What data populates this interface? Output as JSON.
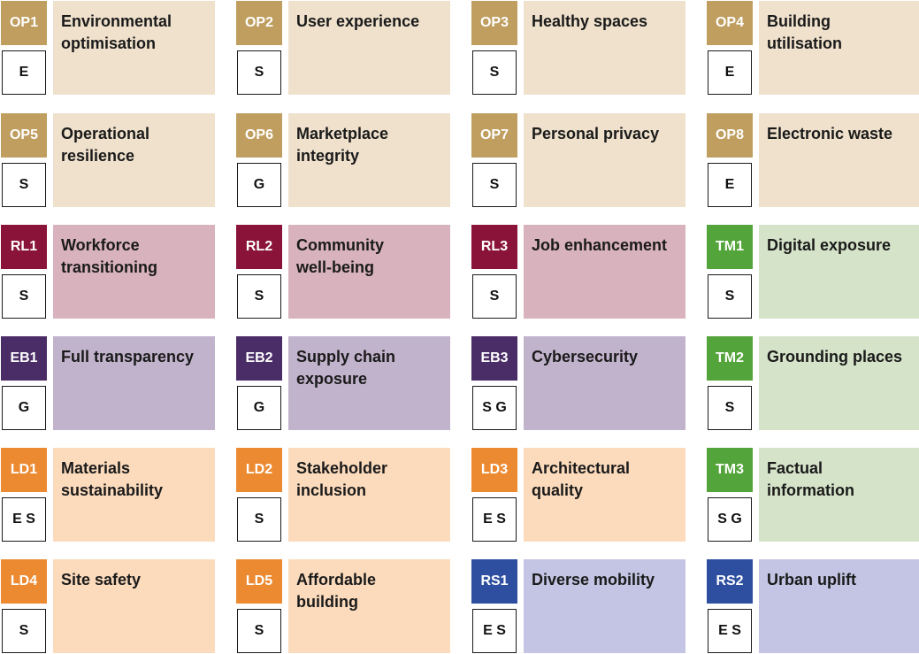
{
  "colors": {
    "op": {
      "code": "#bf9e5f",
      "panel": "#efe1cc"
    },
    "rl": {
      "code": "#8a1339",
      "panel": "#d8b2bd"
    },
    "eb": {
      "code": "#4a2c66",
      "panel": "#c1b3cc"
    },
    "ld": {
      "code": "#ec8a31",
      "panel": "#fcdbbd"
    },
    "tm": {
      "code": "#53a43a",
      "panel": "#d5e3c9"
    },
    "rs": {
      "code": "#2e4f9f",
      "panel": "#c4c5e4"
    }
  },
  "tiles": [
    {
      "code": "OP1",
      "title": "Environmental\noptimisation",
      "esg": "E",
      "group": "op"
    },
    {
      "code": "OP2",
      "title": "User experience",
      "esg": "S",
      "group": "op"
    },
    {
      "code": "OP3",
      "title": "Healthy spaces",
      "esg": "S",
      "group": "op"
    },
    {
      "code": "OP4",
      "title": "Building\nutilisation",
      "esg": "E",
      "group": "op"
    },
    {
      "code": "OP5",
      "title": "Operational\nresilience",
      "esg": "S",
      "group": "op"
    },
    {
      "code": "OP6",
      "title": "Marketplace\nintegrity",
      "esg": "G",
      "group": "op"
    },
    {
      "code": "OP7",
      "title": "Personal privacy",
      "esg": "S",
      "group": "op"
    },
    {
      "code": "OP8",
      "title": "Electronic waste",
      "esg": "E",
      "group": "op"
    },
    {
      "code": "RL1",
      "title": "Workforce\ntransitioning",
      "esg": "S",
      "group": "rl"
    },
    {
      "code": "RL2",
      "title": "Community\nwell-being",
      "esg": "S",
      "group": "rl"
    },
    {
      "code": "RL3",
      "title": "Job enhancement",
      "esg": "S",
      "group": "rl"
    },
    {
      "code": "TM1",
      "title": "Digital exposure",
      "esg": "S",
      "group": "tm"
    },
    {
      "code": "EB1",
      "title": "Full transparency",
      "esg": "G",
      "group": "eb"
    },
    {
      "code": "EB2",
      "title": "Supply chain\nexposure",
      "esg": "G",
      "group": "eb"
    },
    {
      "code": "EB3",
      "title": "Cybersecurity",
      "esg": "S G",
      "group": "eb"
    },
    {
      "code": "TM2",
      "title": "Grounding places",
      "esg": "S",
      "group": "tm"
    },
    {
      "code": "LD1",
      "title": "Materials\nsustainability",
      "esg": "E S",
      "group": "ld"
    },
    {
      "code": "LD2",
      "title": "Stakeholder\ninclusion",
      "esg": "S",
      "group": "ld"
    },
    {
      "code": "LD3",
      "title": "Architectural\nquality",
      "esg": "E S",
      "group": "ld"
    },
    {
      "code": "TM3",
      "title": "Factual\ninformation",
      "esg": "S G",
      "group": "tm"
    },
    {
      "code": "LD4",
      "title": "Site safety",
      "esg": "S",
      "group": "ld"
    },
    {
      "code": "LD5",
      "title": "Affordable\nbuilding",
      "esg": "S",
      "group": "ld"
    },
    {
      "code": "RS1",
      "title": "Diverse mobility",
      "esg": "E S",
      "group": "rs"
    },
    {
      "code": "RS2",
      "title": "Urban uplift",
      "esg": "E S",
      "group": "rs"
    }
  ]
}
